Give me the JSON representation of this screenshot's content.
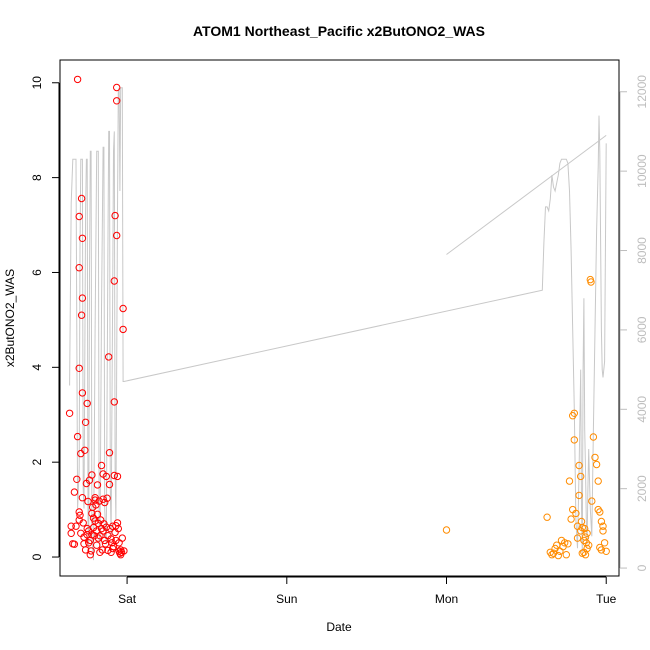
{
  "chart_data": {
    "type": "scatter",
    "title": "ATOM1 Northeast_Pacific x2ButONO2_WAS",
    "xlabel": "Date",
    "ylabel": "x2ButONO2_WAS",
    "x_ticks": [
      "Sat",
      "Sun",
      "Mon",
      "Tue"
    ],
    "x_tick_values": [
      1,
      2,
      3,
      4
    ],
    "xlim": [
      0.58,
      4.08
    ],
    "ylim": [
      -0.4,
      10.48
    ],
    "y_ticks": [
      0,
      2,
      4,
      6,
      8,
      10
    ],
    "y2lim": [
      -200,
      12800
    ],
    "y2_ticks": [
      0,
      2000,
      4000,
      6000,
      8000,
      10000,
      12000
    ],
    "colors": {
      "flight1": "#ff0000",
      "flight2": "#ff8c00",
      "altitude": "#c8c8c8",
      "axis": "#000000",
      "axis_right": "#bdbdbd"
    },
    "series": [
      {
        "marker": "circle-open",
        "color": "#ff0000",
        "points": [
          [
            0.64,
            3.03
          ],
          [
            0.65,
            0.65
          ],
          [
            0.65,
            0.5
          ],
          [
            0.66,
            0.28
          ],
          [
            0.67,
            1.37
          ],
          [
            0.67,
            0.27
          ],
          [
            0.68,
            0.65
          ],
          [
            0.685,
            1.64
          ],
          [
            0.69,
            10.07
          ],
          [
            0.69,
            2.54
          ],
          [
            0.7,
            7.18
          ],
          [
            0.7,
            6.1
          ],
          [
            0.7,
            3.98
          ],
          [
            0.7,
            0.95
          ],
          [
            0.7,
            0.78
          ],
          [
            0.705,
            0.88
          ],
          [
            0.71,
            2.18
          ],
          [
            0.71,
            0.5
          ],
          [
            0.715,
            7.56
          ],
          [
            0.715,
            5.1
          ],
          [
            0.72,
            6.72
          ],
          [
            0.72,
            5.46
          ],
          [
            0.72,
            3.46
          ],
          [
            0.72,
            1.25
          ],
          [
            0.725,
            0.72
          ],
          [
            0.73,
            0.28
          ],
          [
            0.73,
            0.42
          ],
          [
            0.735,
            2.25
          ],
          [
            0.74,
            2.84
          ],
          [
            0.74,
            0.15
          ],
          [
            0.745,
            1.55
          ],
          [
            0.75,
            3.24
          ],
          [
            0.75,
            0.6
          ],
          [
            0.75,
            0.47
          ],
          [
            0.755,
            1.17
          ],
          [
            0.76,
            0.3
          ],
          [
            0.76,
            0.55
          ],
          [
            0.765,
            1.62
          ],
          [
            0.77,
            0.05
          ],
          [
            0.77,
            0.35
          ],
          [
            0.775,
            0.13
          ],
          [
            0.78,
            0.92
          ],
          [
            0.78,
            1.73
          ],
          [
            0.78,
            0.47
          ],
          [
            0.785,
            1.05
          ],
          [
            0.79,
            0.82
          ],
          [
            0.79,
            0.62
          ],
          [
            0.795,
            0.45
          ],
          [
            0.8,
            1.25
          ],
          [
            0.8,
            1.2
          ],
          [
            0.8,
            0.76
          ],
          [
            0.805,
            1.1
          ],
          [
            0.81,
            0.55
          ],
          [
            0.81,
            0.25
          ],
          [
            0.815,
            0.9
          ],
          [
            0.815,
            1.52
          ],
          [
            0.82,
            0.71
          ],
          [
            0.82,
            0.4
          ],
          [
            0.825,
            1.18
          ],
          [
            0.83,
            0.1
          ],
          [
            0.83,
            0.45
          ],
          [
            0.835,
            0.78
          ],
          [
            0.84,
            0.6
          ],
          [
            0.84,
            1.93
          ],
          [
            0.845,
            0.15
          ],
          [
            0.85,
            1.22
          ],
          [
            0.85,
            1.75
          ],
          [
            0.85,
            0.55
          ],
          [
            0.855,
            0.7
          ],
          [
            0.86,
            1.15
          ],
          [
            0.86,
            0.35
          ],
          [
            0.865,
            0.28
          ],
          [
            0.87,
            1.7
          ],
          [
            0.87,
            0.63
          ],
          [
            0.875,
            1.24
          ],
          [
            0.88,
            0.45
          ],
          [
            0.88,
            0.14
          ],
          [
            0.885,
            4.22
          ],
          [
            0.89,
            1.53
          ],
          [
            0.89,
            2.2
          ],
          [
            0.895,
            0.6
          ],
          [
            0.9,
            0.38
          ],
          [
            0.9,
            0.1
          ],
          [
            0.905,
            0.3
          ],
          [
            0.91,
            0.65
          ],
          [
            0.91,
            0.18
          ],
          [
            0.915,
            0.22
          ],
          [
            0.92,
            1.72
          ],
          [
            0.92,
            3.27
          ],
          [
            0.92,
            5.82
          ],
          [
            0.925,
            0.52
          ],
          [
            0.925,
            7.2
          ],
          [
            0.93,
            0.35
          ],
          [
            0.93,
            0.66
          ],
          [
            0.935,
            6.78
          ],
          [
            0.935,
            9.62
          ],
          [
            0.935,
            9.9
          ],
          [
            0.94,
            0.72
          ],
          [
            0.94,
            1.7
          ],
          [
            0.945,
            0.6
          ],
          [
            0.95,
            0.3
          ],
          [
            0.95,
            0.12
          ],
          [
            0.955,
            0.08
          ],
          [
            0.96,
            0.05
          ],
          [
            0.96,
            0.15
          ],
          [
            0.965,
            0.1
          ],
          [
            0.97,
            0.4
          ],
          [
            0.975,
            5.24
          ],
          [
            0.975,
            4.8
          ],
          [
            0.98,
            0.13
          ]
        ]
      },
      {
        "marker": "circle-open",
        "color": "#ff8c00",
        "points": [
          [
            3.0,
            0.57
          ],
          [
            3.63,
            0.84
          ],
          [
            3.65,
            0.1
          ],
          [
            3.66,
            0.05
          ],
          [
            3.67,
            0.08
          ],
          [
            3.68,
            0.18
          ],
          [
            3.69,
            0.25
          ],
          [
            3.7,
            0.03
          ],
          [
            3.71,
            0.12
          ],
          [
            3.72,
            0.35
          ],
          [
            3.73,
            0.22
          ],
          [
            3.74,
            0.3
          ],
          [
            3.75,
            0.05
          ],
          [
            3.76,
            0.28
          ],
          [
            3.77,
            1.6
          ],
          [
            3.78,
            0.8
          ],
          [
            3.79,
            1.0
          ],
          [
            3.79,
            2.98
          ],
          [
            3.8,
            3.03
          ],
          [
            3.8,
            2.47
          ],
          [
            3.81,
            0.92
          ],
          [
            3.82,
            0.4
          ],
          [
            3.82,
            0.65
          ],
          [
            3.83,
            1.93
          ],
          [
            3.83,
            1.3
          ],
          [
            3.84,
            1.7
          ],
          [
            3.84,
            0.55
          ],
          [
            3.845,
            0.75
          ],
          [
            3.85,
            0.08
          ],
          [
            3.85,
            0.62
          ],
          [
            3.86,
            0.35
          ],
          [
            3.86,
            0.1
          ],
          [
            3.865,
            0.6
          ],
          [
            3.87,
            0.05
          ],
          [
            3.87,
            0.42
          ],
          [
            3.875,
            0.3
          ],
          [
            3.88,
            0.18
          ],
          [
            3.89,
            0.25
          ],
          [
            3.9,
            5.85
          ],
          [
            3.905,
            5.8
          ],
          [
            3.91,
            1.18
          ],
          [
            3.92,
            2.53
          ],
          [
            3.93,
            2.1
          ],
          [
            3.94,
            1.95
          ],
          [
            3.95,
            1.0
          ],
          [
            3.96,
            0.95
          ],
          [
            3.97,
            0.75
          ],
          [
            3.98,
            0.65
          ],
          [
            3.98,
            0.55
          ],
          [
            3.99,
            0.3
          ],
          [
            4.0,
            0.12
          ],
          [
            3.95,
            1.6
          ],
          [
            3.96,
            0.2
          ],
          [
            3.97,
            0.15
          ],
          [
            3.88,
            0.5
          ]
        ]
      },
      {
        "name": "",
        "axis": "right",
        "type": "line",
        "color": "#c8c8c8",
        "segments": [
          [
            [
              0.64,
              4600
            ],
            [
              0.65,
              9200
            ],
            [
              0.66,
              10300
            ],
            [
              0.67,
              10300
            ],
            [
              0.68,
              10300
            ],
            [
              0.69,
              1500
            ],
            [
              0.7,
              2500
            ],
            [
              0.705,
              8000
            ],
            [
              0.71,
              10300
            ],
            [
              0.72,
              10300
            ],
            [
              0.725,
              2000
            ],
            [
              0.73,
              1500
            ],
            [
              0.74,
              9000
            ],
            [
              0.745,
              10300
            ],
            [
              0.75,
              10300
            ],
            [
              0.755,
              1000
            ],
            [
              0.76,
              500
            ],
            [
              0.765,
              7500
            ],
            [
              0.77,
              10500
            ],
            [
              0.775,
              10500
            ],
            [
              0.78,
              800
            ],
            [
              0.79,
              200
            ],
            [
              0.8,
              6000
            ],
            [
              0.81,
              10500
            ],
            [
              0.82,
              10500
            ],
            [
              0.825,
              1200
            ],
            [
              0.83,
              400
            ],
            [
              0.84,
              6500
            ],
            [
              0.85,
              10600
            ],
            [
              0.855,
              10600
            ],
            [
              0.86,
              1500
            ],
            [
              0.87,
              600
            ],
            [
              0.88,
              8000
            ],
            [
              0.885,
              11000
            ],
            [
              0.89,
              11000
            ],
            [
              0.895,
              2000
            ],
            [
              0.9,
              800
            ],
            [
              0.91,
              7000
            ],
            [
              0.915,
              10500
            ],
            [
              0.92,
              11000
            ],
            [
              0.925,
              2500
            ],
            [
              0.93,
              1200
            ],
            [
              0.94,
              9000
            ],
            [
              0.945,
              12000
            ],
            [
              0.95,
              12100
            ],
            [
              0.955,
              9500
            ],
            [
              0.96,
              12100
            ],
            [
              0.97,
              12100
            ],
            [
              0.975,
              4700
            ],
            [
              0.98,
              4700
            ],
            [
              3.6,
              7000
            ],
            [
              3.61,
              8200
            ],
            [
              3.62,
              9100
            ],
            [
              3.63,
              9100
            ],
            [
              3.64,
              9000
            ],
            [
              3.65,
              9300
            ],
            [
              3.66,
              9900
            ],
            [
              3.67,
              9600
            ],
            [
              3.68,
              9500
            ],
            [
              3.69,
              9700
            ],
            [
              3.7,
              9900
            ],
            [
              3.71,
              10200
            ],
            [
              3.72,
              10300
            ],
            [
              3.73,
              10300
            ],
            [
              3.74,
              10300
            ],
            [
              3.75,
              10300
            ],
            [
              3.76,
              10200
            ],
            [
              3.77,
              9500
            ],
            [
              3.78,
              8000
            ],
            [
              3.79,
              6000
            ],
            [
              3.8,
              4000
            ],
            [
              3.81,
              1200
            ],
            [
              3.82,
              500
            ],
            [
              3.83,
              2500
            ],
            [
              3.84,
              5000
            ],
            [
              3.845,
              1500
            ],
            [
              3.85,
              400
            ],
            [
              3.855,
              5000
            ],
            [
              3.86,
              6800
            ],
            [
              3.865,
              3500
            ],
            [
              3.87,
              2500
            ],
            [
              3.875,
              1200
            ],
            [
              3.88,
              600
            ],
            [
              3.885,
              2000
            ],
            [
              3.89,
              3000
            ],
            [
              3.9,
              1500
            ],
            [
              3.91,
              800
            ],
            [
              3.92,
              3500
            ],
            [
              3.93,
              6000
            ],
            [
              3.94,
              8500
            ],
            [
              3.95,
              10100
            ],
            [
              3.955,
              11400
            ],
            [
              3.96,
              10500
            ],
            [
              3.97,
              6000
            ],
            [
              3.975,
              5000
            ],
            [
              3.98,
              4800
            ],
            [
              3.99,
              5200
            ],
            [
              4.0,
              10700
            ]
          ],
          [
            [
              3.0,
              7900
            ],
            [
              4.0,
              10900
            ]
          ]
        ]
      }
    ]
  }
}
